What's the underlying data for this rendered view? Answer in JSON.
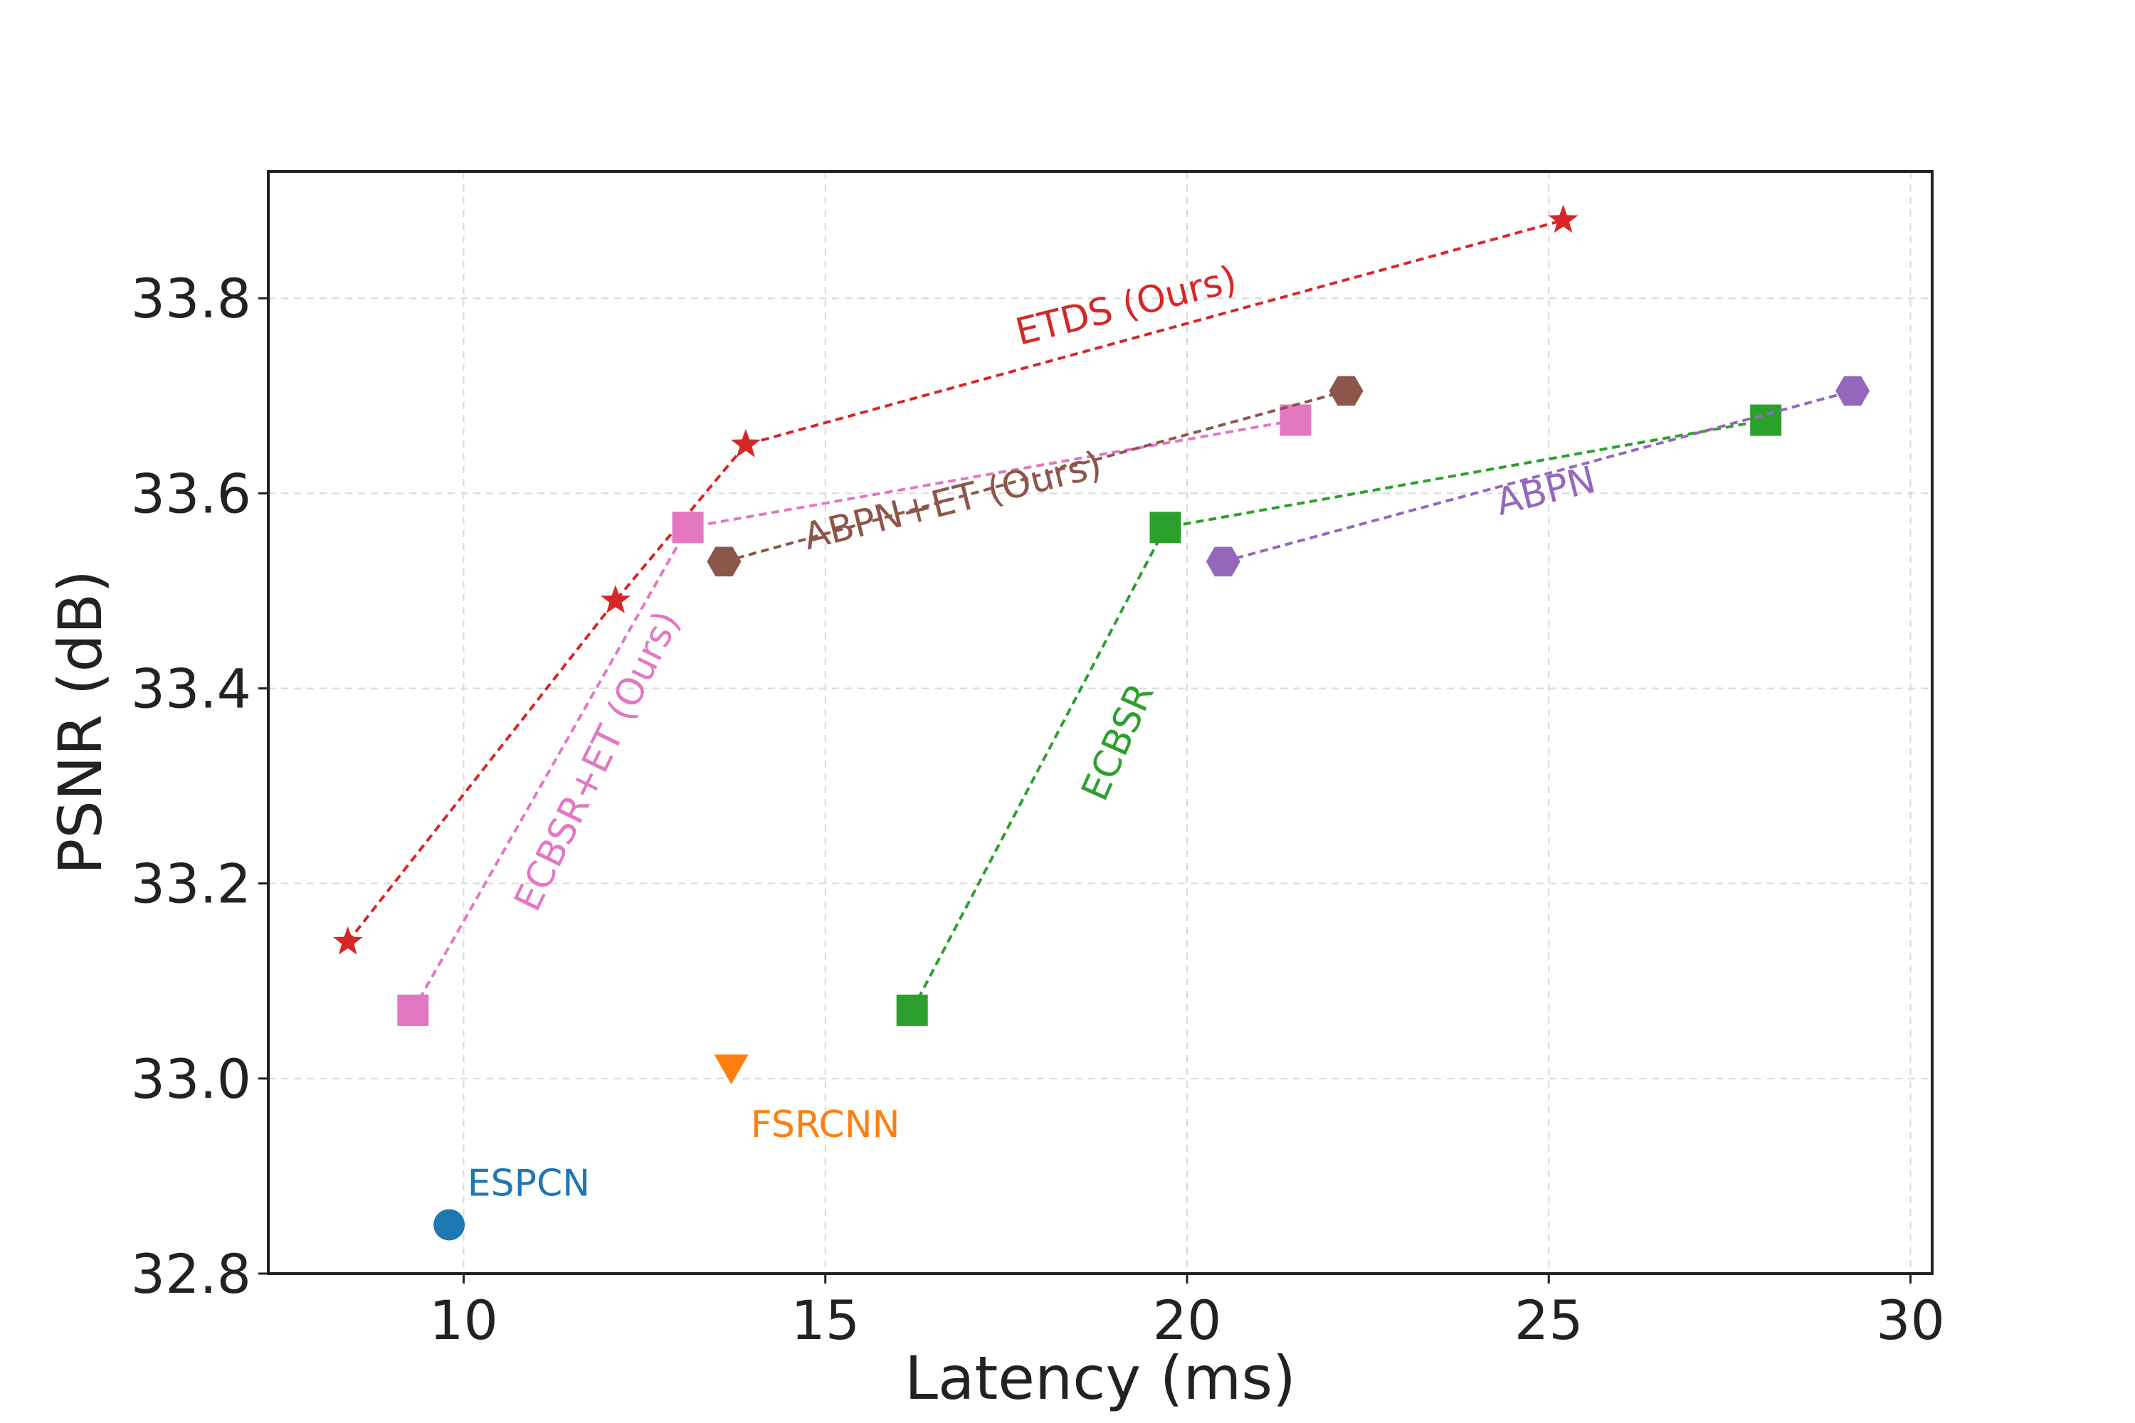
{
  "chart_data": {
    "type": "line",
    "title": "",
    "xlabel": "Latency (ms)",
    "ylabel": "PSNR (dB)",
    "xlim": [
      7.3,
      30.3
    ],
    "ylim": [
      32.8,
      33.93
    ],
    "grid": true,
    "x_ticks": [
      10,
      15,
      20,
      25,
      30
    ],
    "y_ticks": [
      32.8,
      33.0,
      33.2,
      33.4,
      33.6,
      33.8
    ],
    "x_tick_labels": [
      "10",
      "15",
      "20",
      "25",
      "30"
    ],
    "y_tick_labels": [
      "32.8",
      "33.0",
      "33.2",
      "33.4",
      "33.6",
      "33.8"
    ],
    "series": [
      {
        "name": "ETDS (Ours)",
        "color": "#d62728",
        "marker": "star",
        "x": [
          8.4,
          12.1,
          13.9,
          25.2
        ],
        "y": [
          33.14,
          33.49,
          33.65,
          33.88
        ],
        "label": {
          "text": "ETDS (Ours)",
          "x": 19.2,
          "y": 33.78,
          "angle": -14
        }
      },
      {
        "name": "ECBSR+ET (Ours)",
        "color": "#e377c2",
        "marker": "square",
        "x": [
          9.3,
          13.1,
          21.5
        ],
        "y": [
          33.07,
          33.565,
          33.675
        ],
        "label": {
          "text": "ECBSR+ET (Ours)",
          "x": 12.0,
          "y": 33.32,
          "angle": -64
        }
      },
      {
        "name": "ABPN+ET (Ours)",
        "color": "#8c564b",
        "marker": "hexagon",
        "x": [
          13.6,
          22.2
        ],
        "y": [
          33.53,
          33.705
        ],
        "label": {
          "text": "ABPN+ET (Ours)",
          "x": 16.8,
          "y": 33.58,
          "angle": -14
        }
      },
      {
        "name": "ECBSR",
        "color": "#2ca02c",
        "marker": "square",
        "x": [
          16.2,
          19.7,
          28.0
        ],
        "y": [
          33.07,
          33.565,
          33.675
        ],
        "label": {
          "text": "ECBSR",
          "x": 19.2,
          "y": 33.34,
          "angle": -66
        }
      },
      {
        "name": "ABPN",
        "color": "#9467bd",
        "marker": "hexagon",
        "x": [
          20.5,
          29.2
        ],
        "y": [
          33.53,
          33.705
        ],
        "label": {
          "text": "ABPN",
          "x": 25.0,
          "y": 33.59,
          "angle": -14
        }
      },
      {
        "name": "FSRCNN",
        "color": "#ff7f0e",
        "marker": "triangle_down",
        "x": [
          13.7
        ],
        "y": [
          33.01
        ],
        "label": {
          "text": "FSRCNN",
          "x": 15.0,
          "y": 32.94,
          "angle": 0
        }
      },
      {
        "name": "ESPCN",
        "color": "#1f77b4",
        "marker": "circle",
        "x": [
          9.8
        ],
        "y": [
          32.85
        ],
        "label": {
          "text": "ESPCN",
          "x": 10.9,
          "y": 32.88,
          "angle": 0
        }
      }
    ]
  }
}
